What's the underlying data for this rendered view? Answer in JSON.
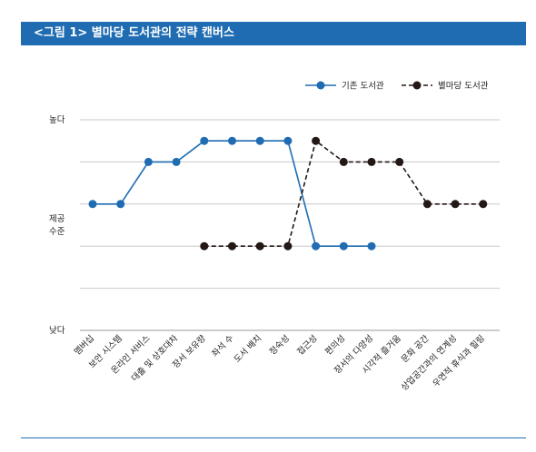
{
  "figure": {
    "title": "<그림 1> 별마당 도서관의 전략 캔버스"
  },
  "chart_data": {
    "type": "line",
    "categories": [
      "멤버십",
      "보안 시스템",
      "온라인 서비스",
      "대출 및 상호대차",
      "장서 보유량",
      "좌석 수",
      "도서 배치",
      "정숙성",
      "접근성",
      "편의성",
      "장서의 다양성",
      "시각적 즐거움",
      "문화 공간",
      "상업공간과의 연계성",
      "우연적 휴식과 힐링"
    ],
    "y_labels": {
      "high": "높다",
      "mid": "제공\n수준",
      "low": "낮다"
    },
    "ylim": [
      0,
      5
    ],
    "grid": true,
    "legend_position": "top-right",
    "series": [
      {
        "name": "기존 도서관",
        "color": "#1f6cb2",
        "dash": "solid",
        "values": [
          3,
          3,
          4,
          4,
          4.5,
          4.5,
          4.5,
          4.5,
          2,
          2,
          2,
          null,
          null,
          null,
          null
        ]
      },
      {
        "name": "별마당 도서관",
        "color": "#231815",
        "dash": "dashed",
        "values": [
          null,
          null,
          null,
          null,
          2,
          2,
          2,
          2,
          4.5,
          4,
          4,
          4,
          3,
          3,
          3
        ]
      }
    ]
  }
}
